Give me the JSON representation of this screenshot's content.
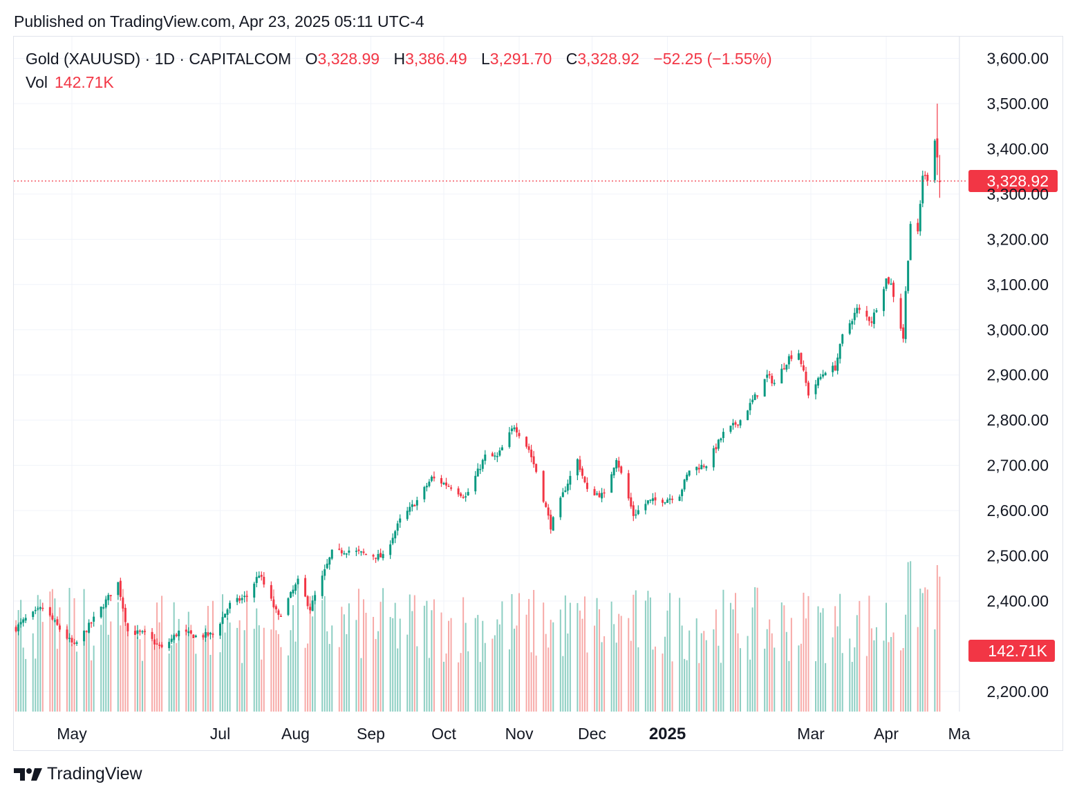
{
  "header": {
    "published": "Published on TradingView.com, Apr 23, 2025 05:11 UTC-4"
  },
  "legend": {
    "symbol": "Gold (XAUUSD) · 1D · CAPITALCOM",
    "o_label": "O",
    "o_value": "3,328.99",
    "h_label": "H",
    "h_value": "3,386.49",
    "l_label": "L",
    "l_value": "3,291.70",
    "c_label": "C",
    "c_value": "3,328.92",
    "change": "−52.25 (−1.55%)",
    "vol_label": "Vol",
    "vol_value": "142.71K"
  },
  "colors": {
    "up": "#089981",
    "down": "#f23645",
    "up_vol": "#8ccec2",
    "down_vol": "#f7a9a7",
    "grid": "#f0f3fa"
  },
  "footer": {
    "brand": "TradingView",
    "logo_icon": "tradingview-logo-icon"
  },
  "chart_data": {
    "type": "candlestick",
    "symbol": "Gold (XAUUSD)",
    "interval": "1D",
    "exchange": "CAPITALCOM",
    "y_axis": {
      "range": [
        2130,
        3700
      ],
      "ticks": [
        "3,600.00",
        "3,500.00",
        "3,400.00",
        "3,300.00",
        "3,200.00",
        "3,100.00",
        "3,000.00",
        "2,900.00",
        "2,800.00",
        "2,700.00",
        "2,600.00",
        "2,500.00",
        "2,400.00",
        "2,200.00"
      ],
      "tick_values": [
        3600,
        3500,
        3400,
        3300,
        3200,
        3100,
        3000,
        2900,
        2800,
        2700,
        2600,
        2500,
        2400,
        2200
      ]
    },
    "x_axis": {
      "labels": [
        "May",
        "Jul",
        "Aug",
        "Sep",
        "Oct",
        "Nov",
        "Dec",
        "2025",
        "Mar",
        "Apr",
        "Ma"
      ],
      "label_dates": [
        "2024-05-01",
        "2024-07-01",
        "2024-08-01",
        "2024-09-01",
        "2024-10-01",
        "2024-11-01",
        "2024-12-01",
        "2025-01-01",
        "2025-03-01",
        "2025-04-01",
        "2025-05-01"
      ],
      "bold": [
        "2025"
      ]
    },
    "last_price": {
      "value": 3328.92,
      "label": "3,328.92"
    },
    "last_volume": {
      "label": "142.71K"
    },
    "grid": true,
    "close_path": [
      [
        "2024-04-08",
        2340
      ],
      [
        "2024-04-12",
        2360
      ],
      [
        "2024-04-19",
        2385
      ],
      [
        "2024-04-26",
        2338
      ],
      [
        "2024-05-02",
        2300
      ],
      [
        "2024-05-10",
        2360
      ],
      [
        "2024-05-20",
        2440
      ],
      [
        "2024-05-24",
        2333
      ],
      [
        "2024-05-31",
        2327
      ],
      [
        "2024-06-07",
        2294
      ],
      [
        "2024-06-14",
        2332
      ],
      [
        "2024-06-21",
        2322
      ],
      [
        "2024-06-28",
        2326
      ],
      [
        "2024-07-05",
        2392
      ],
      [
        "2024-07-12",
        2411
      ],
      [
        "2024-07-17",
        2460
      ],
      [
        "2024-07-25",
        2364
      ],
      [
        "2024-08-02",
        2443
      ],
      [
        "2024-08-07",
        2383
      ],
      [
        "2024-08-16",
        2507
      ],
      [
        "2024-08-23",
        2512
      ],
      [
        "2024-08-30",
        2503
      ],
      [
        "2024-09-06",
        2497
      ],
      [
        "2024-09-13",
        2578
      ],
      [
        "2024-09-20",
        2622
      ],
      [
        "2024-09-26",
        2672
      ],
      [
        "2024-10-04",
        2653
      ],
      [
        "2024-10-10",
        2630
      ],
      [
        "2024-10-18",
        2720
      ],
      [
        "2024-10-23",
        2718
      ],
      [
        "2024-10-30",
        2788
      ],
      [
        "2024-11-05",
        2735
      ],
      [
        "2024-11-08",
        2687
      ],
      [
        "2024-11-14",
        2565
      ],
      [
        "2024-11-20",
        2650
      ],
      [
        "2024-11-25",
        2712
      ],
      [
        "2024-11-29",
        2643
      ],
      [
        "2024-12-06",
        2633
      ],
      [
        "2024-12-11",
        2717
      ],
      [
        "2024-12-18",
        2590
      ],
      [
        "2024-12-24",
        2620
      ],
      [
        "2024-12-31",
        2624
      ],
      [
        "2025-01-06",
        2636
      ],
      [
        "2025-01-10",
        2690
      ],
      [
        "2025-01-17",
        2702
      ],
      [
        "2025-01-24",
        2770
      ],
      [
        "2025-01-31",
        2800
      ],
      [
        "2025-02-07",
        2860
      ],
      [
        "2025-02-11",
        2898
      ],
      [
        "2025-02-14",
        2882
      ],
      [
        "2025-02-20",
        2939
      ],
      [
        "2025-02-24",
        2950
      ],
      [
        "2025-02-28",
        2858
      ],
      [
        "2025-03-07",
        2910
      ],
      [
        "2025-03-11",
        2916
      ],
      [
        "2025-03-14",
        2985
      ],
      [
        "2025-03-20",
        3045
      ],
      [
        "2025-03-26",
        3019
      ],
      [
        "2025-04-01",
        3112
      ],
      [
        "2025-04-03",
        3100
      ],
      [
        "2025-04-08",
        2982
      ],
      [
        "2025-04-09",
        3083
      ],
      [
        "2025-04-11",
        3236
      ],
      [
        "2025-04-14",
        3211
      ],
      [
        "2025-04-16",
        3343
      ],
      [
        "2025-04-18",
        3335
      ],
      [
        "2025-04-21",
        3423
      ],
      [
        "2025-04-22",
        3381
      ],
      [
        "2025-04-23",
        3328.92
      ]
    ],
    "notable_bars": [
      {
        "date": "2025-04-22",
        "open": 3423,
        "high": 3500,
        "low": 3342,
        "close": 3381
      },
      {
        "date": "2025-04-23",
        "open": 3328.99,
        "high": 3386.49,
        "low": 3291.7,
        "close": 3328.92
      }
    ]
  }
}
